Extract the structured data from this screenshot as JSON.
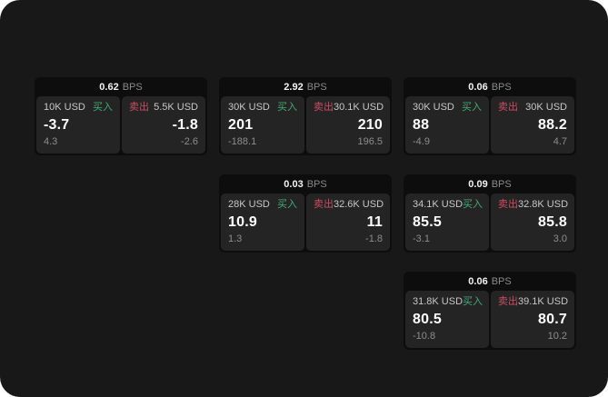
{
  "labels": {
    "bps_unit": "BPS",
    "buy": "买入",
    "sell": "卖出"
  },
  "colors": {
    "buy_label": "#42ab76",
    "sell_label": "#cf4a64",
    "screen_bg": "#181818",
    "card_bg": "#0d0d0d",
    "panel_bg": "#242424"
  },
  "cards": [
    {
      "bps": "0.62",
      "buy": {
        "amount": "10K USD",
        "price": "-3.7",
        "delta": "4.3"
      },
      "sell": {
        "amount": "5.5K USD",
        "price": "-1.8",
        "delta": "-2.6"
      }
    },
    {
      "bps": "2.92",
      "buy": {
        "amount": "30K USD",
        "price": "201",
        "delta": "-188.1"
      },
      "sell": {
        "amount": "30.1K USD",
        "price": "210",
        "delta": "196.5"
      }
    },
    {
      "bps": "0.06",
      "buy": {
        "amount": "30K USD",
        "price": "88",
        "delta": "-4.9"
      },
      "sell": {
        "amount": "30K USD",
        "price": "88.2",
        "delta": "4.7"
      }
    },
    {
      "bps": "0.03",
      "buy": {
        "amount": "28K USD",
        "price": "10.9",
        "delta": "1.3"
      },
      "sell": {
        "amount": "32.6K USD",
        "price": "11",
        "delta": "-1.8"
      }
    },
    {
      "bps": "0.09",
      "buy": {
        "amount": "34.1K USD",
        "price": "85.5",
        "delta": "-3.1"
      },
      "sell": {
        "amount": "32.8K USD",
        "price": "85.8",
        "delta": "3.0"
      }
    },
    {
      "bps": "0.06",
      "buy": {
        "amount": "31.8K USD",
        "price": "80.5",
        "delta": "-10.8"
      },
      "sell": {
        "amount": "39.1K USD",
        "price": "80.7",
        "delta": "10.2"
      }
    }
  ]
}
